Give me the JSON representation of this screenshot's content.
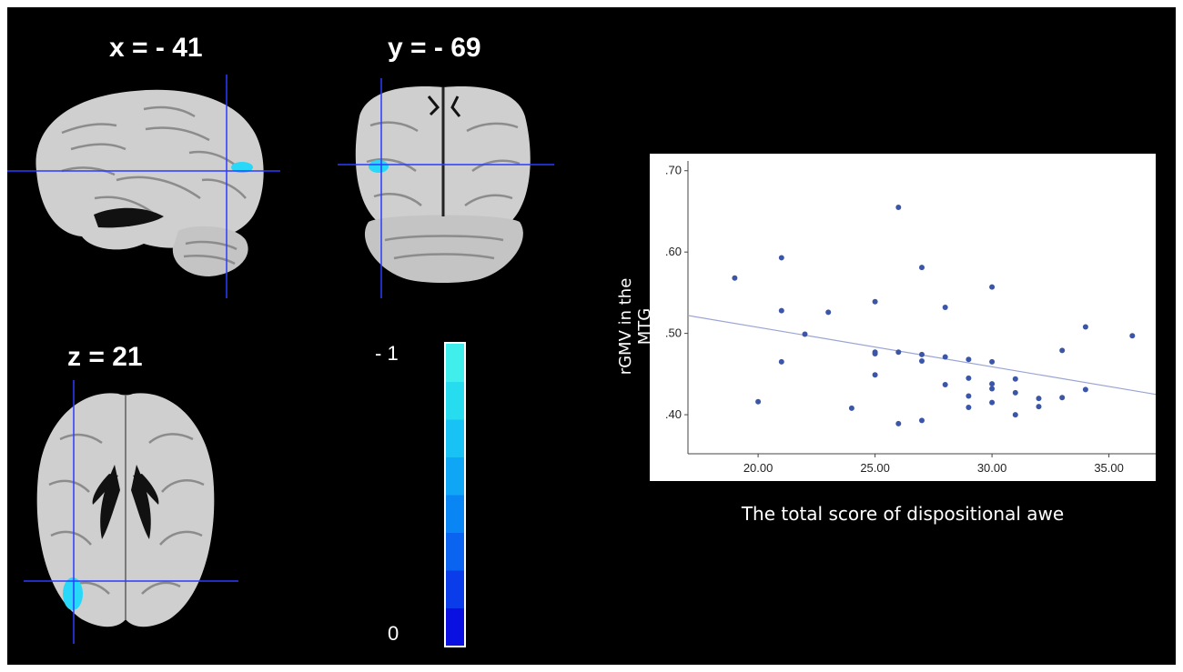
{
  "slices": {
    "sagittal_label": "x = - 41",
    "coronal_label": "y = - 69",
    "axial_label": "z = 21"
  },
  "colorbar": {
    "top_label": "- 1",
    "bottom_label": "0",
    "colors": [
      "#0a10e0",
      "#0a3cea",
      "#0a64f0",
      "#0a86f4",
      "#10a6f6",
      "#18c2f4",
      "#28dcf0",
      "#40eeec"
    ]
  },
  "colors": {
    "background": "#000000",
    "crosshair": "#2a3cff",
    "cluster": "#28d8f8",
    "point": "#3b56a8",
    "fit_line": "#9aa4d4"
  },
  "chart_data": {
    "type": "scatter",
    "xlabel": "The total score of  dispositional awe",
    "ylabel": "rGMV  in the  MTG",
    "xlim": [
      17.0,
      37.0
    ],
    "ylim": [
      0.352,
      0.712
    ],
    "x_ticks": [
      20,
      25,
      30,
      35
    ],
    "x_tick_labels": [
      "20.00",
      "25.00",
      "30.00",
      "35.00"
    ],
    "y_ticks": [
      0.4,
      0.5,
      0.6,
      0.7
    ],
    "y_tick_labels": [
      ".40",
      ".50",
      ".60",
      ".70"
    ],
    "grid": false,
    "points": [
      [
        19,
        0.568
      ],
      [
        20,
        0.416
      ],
      [
        21,
        0.593
      ],
      [
        21,
        0.528
      ],
      [
        21,
        0.465
      ],
      [
        22,
        0.499
      ],
      [
        23,
        0.526
      ],
      [
        24,
        0.408
      ],
      [
        25,
        0.539
      ],
      [
        25,
        0.477
      ],
      [
        25,
        0.475
      ],
      [
        25,
        0.449
      ],
      [
        26,
        0.655
      ],
      [
        26,
        0.477
      ],
      [
        26,
        0.389
      ],
      [
        27,
        0.581
      ],
      [
        27,
        0.474
      ],
      [
        27,
        0.466
      ],
      [
        27,
        0.393
      ],
      [
        28,
        0.532
      ],
      [
        28,
        0.471
      ],
      [
        28,
        0.437
      ],
      [
        29,
        0.468
      ],
      [
        29,
        0.445
      ],
      [
        29,
        0.423
      ],
      [
        29,
        0.409
      ],
      [
        30,
        0.557
      ],
      [
        30,
        0.465
      ],
      [
        30,
        0.438
      ],
      [
        30,
        0.432
      ],
      [
        30,
        0.415
      ],
      [
        31,
        0.444
      ],
      [
        31,
        0.427
      ],
      [
        31,
        0.4
      ],
      [
        32,
        0.42
      ],
      [
        32,
        0.41
      ],
      [
        33,
        0.479
      ],
      [
        33,
        0.421
      ],
      [
        34,
        0.508
      ],
      [
        34,
        0.431
      ],
      [
        36,
        0.497
      ]
    ],
    "fit_line": {
      "x": [
        17.0,
        37.0
      ],
      "y": [
        0.522,
        0.425
      ]
    }
  }
}
